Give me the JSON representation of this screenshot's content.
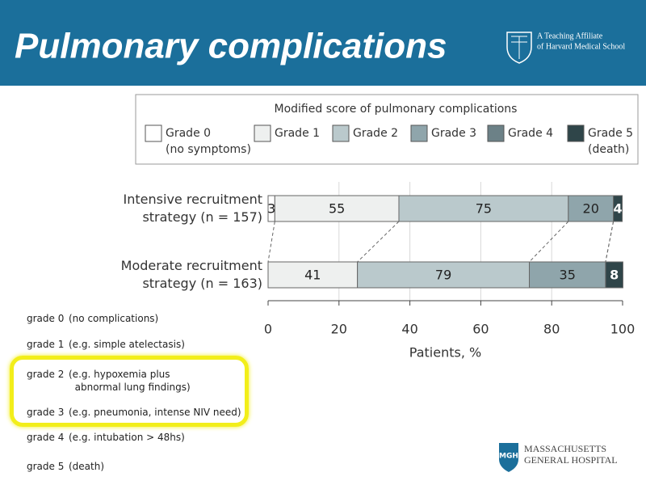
{
  "header": {
    "title": "Pulmonary complications",
    "affiliate": [
      "A Teaching Affiliate",
      "of Harvard Medical School"
    ]
  },
  "chart_data": {
    "type": "stacked_barh",
    "title": "Modified score of pulmonary complications",
    "categories": [
      "Intensive recruitment\nstrategy (n = 157)",
      "Moderate recruitment\nstrategy (n = 163)"
    ],
    "series": [
      {
        "name": "Grade 0",
        "sublabel": "(no symptoms)",
        "color": "#ffffff",
        "label_color": "#222222",
        "values": [
          1.9,
          0
        ],
        "counts": [
          3,
          null
        ]
      },
      {
        "name": "Grade 1",
        "color": "#eef0ef",
        "label_color": "#222222",
        "values": [
          35.0,
          25.2
        ],
        "counts": [
          55,
          41
        ]
      },
      {
        "name": "Grade 2",
        "color": "#bac9cc",
        "label_color": "#222222",
        "values": [
          47.8,
          48.5
        ],
        "counts": [
          75,
          79
        ]
      },
      {
        "name": "Grade 3",
        "color": "#8fa5ab",
        "label_color": "#222222",
        "values": [
          12.7,
          21.5
        ],
        "counts": [
          20,
          35
        ]
      },
      {
        "name": "Grade 4",
        "color": "#6c8187",
        "label_color": "#ffffff",
        "values": [
          0,
          0
        ],
        "counts": [
          null,
          null
        ]
      },
      {
        "name": "Grade 5",
        "sublabel": "(death)",
        "color": "#2f4549",
        "label_color": "#ffffff",
        "values": [
          2.5,
          4.9
        ],
        "counts": [
          4,
          8
        ]
      }
    ],
    "xlim": [
      0,
      100
    ],
    "xticks": [
      0,
      20,
      40,
      60,
      80,
      100
    ],
    "xlabel": "Patients, %",
    "grid": true,
    "legend": "top"
  },
  "grade_list": [
    {
      "grade": "grade 0",
      "desc": "(no complications)"
    },
    {
      "grade": "grade 1",
      "desc": "(e.g. simple atelectasis)"
    },
    {
      "grade": "grade 2",
      "desc": "(e.g. hypoxemia plus\n  abnormal lung findings)"
    },
    {
      "grade": "grade 3",
      "desc": "(e.g. pneumonia, intense NIV need)"
    },
    {
      "grade": "grade 4",
      "desc": "(e.g. intubation > 48hs)"
    },
    {
      "grade": "grade 5",
      "desc": "(death)"
    }
  ],
  "footer": {
    "logo": "MGH",
    "name": [
      "MASSACHUSETTS",
      "GENERAL HOSPITAL"
    ]
  }
}
